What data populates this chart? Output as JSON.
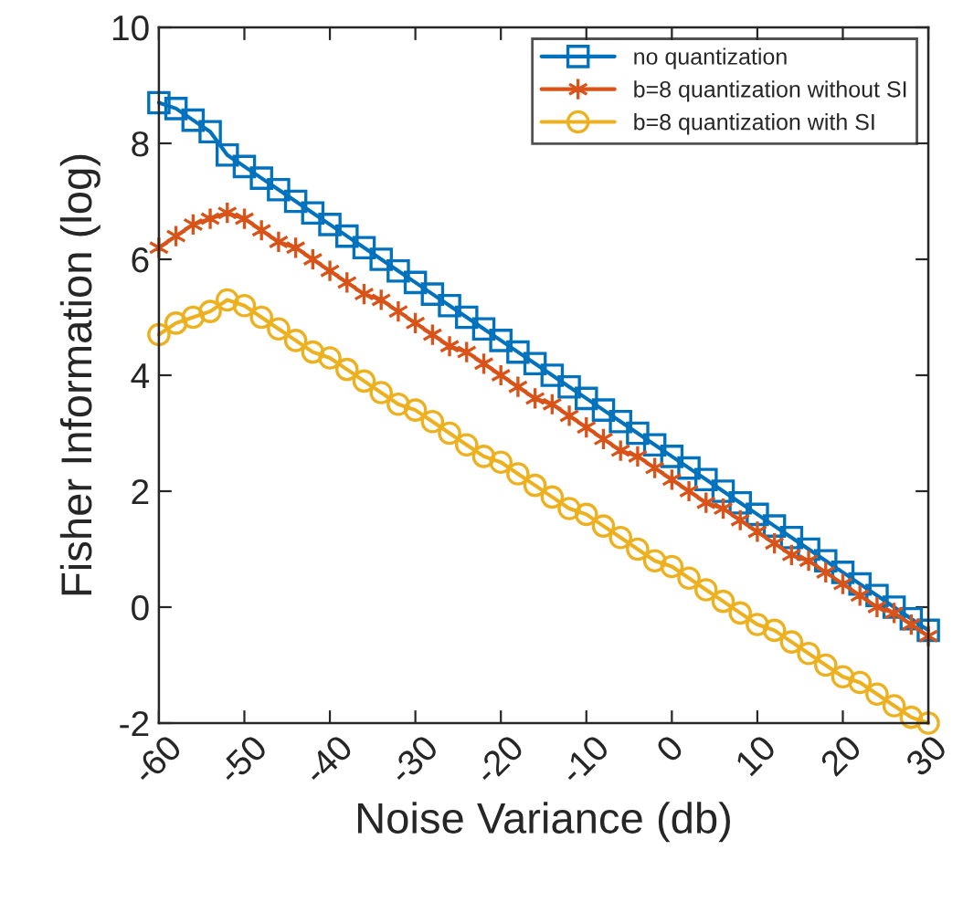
{
  "chart_data": {
    "type": "line",
    "xlabel": "Noise Variance (db)",
    "ylabel": "Fisher Information (log)",
    "x": [
      -60,
      -58,
      -56,
      -54,
      -52,
      -50,
      -48,
      -46,
      -44,
      -42,
      -40,
      -38,
      -36,
      -34,
      -32,
      -30,
      -28,
      -26,
      -24,
      -22,
      -20,
      -18,
      -16,
      -14,
      -12,
      -10,
      -8,
      -6,
      -4,
      -2,
      0,
      2,
      4,
      6,
      8,
      10,
      12,
      14,
      16,
      18,
      20,
      22,
      24,
      26,
      28,
      30
    ],
    "series": [
      {
        "name": "no quantization",
        "color": "#0072bd",
        "marker": "square",
        "values": [
          8.7,
          8.6,
          8.4,
          8.2,
          7.8,
          7.6,
          7.4,
          7.2,
          7.0,
          6.8,
          6.6,
          6.4,
          6.2,
          6.0,
          5.8,
          5.6,
          5.4,
          5.2,
          5.0,
          4.8,
          4.6,
          4.4,
          4.2,
          4.0,
          3.8,
          3.6,
          3.4,
          3.2,
          3.0,
          2.8,
          2.6,
          2.4,
          2.2,
          2.0,
          1.8,
          1.6,
          1.4,
          1.2,
          1.0,
          0.8,
          0.6,
          0.4,
          0.2,
          0.0,
          -0.2,
          -0.4
        ]
      },
      {
        "name": "b=8 quantization without SI",
        "color": "#d95319",
        "marker": "cross",
        "values": [
          6.2,
          6.4,
          6.6,
          6.7,
          6.8,
          6.7,
          6.5,
          6.3,
          6.2,
          6.0,
          5.8,
          5.6,
          5.4,
          5.3,
          5.1,
          4.9,
          4.7,
          4.5,
          4.4,
          4.2,
          4.0,
          3.8,
          3.6,
          3.5,
          3.3,
          3.1,
          2.9,
          2.7,
          2.6,
          2.4,
          2.2,
          2.0,
          1.8,
          1.7,
          1.5,
          1.3,
          1.1,
          0.9,
          0.8,
          0.6,
          0.4,
          0.2,
          0.0,
          -0.1,
          -0.3,
          -0.5
        ]
      },
      {
        "name": "b=8 quantization with SI",
        "color": "#edb120",
        "marker": "circle",
        "values": [
          4.7,
          4.9,
          5.0,
          5.1,
          5.3,
          5.2,
          5.0,
          4.8,
          4.6,
          4.4,
          4.3,
          4.1,
          3.9,
          3.7,
          3.5,
          3.4,
          3.2,
          3.0,
          2.8,
          2.6,
          2.5,
          2.3,
          2.1,
          1.9,
          1.7,
          1.6,
          1.4,
          1.2,
          1.0,
          0.8,
          0.7,
          0.5,
          0.3,
          0.1,
          -0.1,
          -0.3,
          -0.4,
          -0.6,
          -0.8,
          -1.0,
          -1.2,
          -1.3,
          -1.5,
          -1.7,
          -1.9,
          -2.0
        ]
      }
    ],
    "xlim": [
      -60,
      30
    ],
    "xticks": [
      -60,
      -50,
      -40,
      -30,
      -20,
      -10,
      0,
      10,
      20,
      30
    ],
    "ylim": [
      -2,
      10
    ],
    "yticks": [
      -2,
      0,
      2,
      4,
      6,
      8,
      10
    ],
    "grid": false,
    "legend": "top right",
    "line_style": "solid"
  }
}
